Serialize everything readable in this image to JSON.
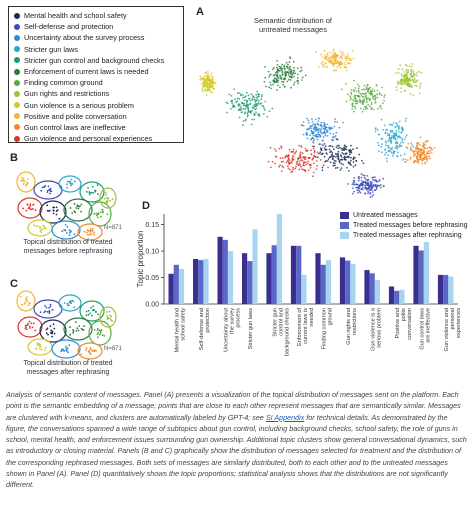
{
  "legend": [
    {
      "label": "Mental health and school safety",
      "color": "#1b2a52"
    },
    {
      "label": "Self-defense and protection",
      "color": "#3b4cb8"
    },
    {
      "label": "Uncertainty about the survey process",
      "color": "#2f8bd6"
    },
    {
      "label": "Stricter gun laws",
      "color": "#29a8c9"
    },
    {
      "label": "Stricter gun control and background checks",
      "color": "#1f9a6a"
    },
    {
      "label": "Enforcement of current laws is needed",
      "color": "#2b7a3f"
    },
    {
      "label": "Finding common ground",
      "color": "#5aa844"
    },
    {
      "label": "Gun rights and restrictions",
      "color": "#9cc43a"
    },
    {
      "label": "Gun violence is a serious problem",
      "color": "#cfcc2e"
    },
    {
      "label": "Positive and polite conversation",
      "color": "#f2b632"
    },
    {
      "label": "Gun control laws are ineffective",
      "color": "#ef8a2a"
    },
    {
      "label": "Gun violence and personal experiences",
      "color": "#d9342b"
    }
  ],
  "panel_a": {
    "letter": "A",
    "title": "Semantic distribution of\nuntreated messages"
  },
  "panel_b": {
    "letter": "B",
    "caption": "Topical distribution of treated\nmessages before rephrasing",
    "n": "N=871"
  },
  "panel_c": {
    "letter": "C",
    "caption": "Topical distribution of treated\nmessages after rephrasing",
    "n": "N=871"
  },
  "panel_d": {
    "letter": "D"
  },
  "chart_data": {
    "type": "bar",
    "ylabel": "Topic proportion",
    "ylim": [
      0,
      0.17
    ],
    "yticks": [
      "0.00",
      "0.05",
      "0.10",
      "0.15"
    ],
    "categories": [
      "Mental health and school safety",
      "Self-defense and protection",
      "Uncertainty about the survey process",
      "Stricter gun laws",
      "Stricter gun control and background checks",
      "Enforcement of current laws is needed",
      "Finding common ground",
      "Gun rights and restrictions",
      "Gun violence is a serious problem",
      "Positive and polite conversation",
      "Gun control laws are ineffective",
      "Gun violence and personal experiences"
    ],
    "series": [
      {
        "name": "Untreated messages",
        "color": "#3a2f8f",
        "values": [
          0.057,
          0.085,
          0.127,
          0.096,
          0.096,
          0.11,
          0.096,
          0.088,
          0.064,
          0.033,
          0.11,
          0.055
        ]
      },
      {
        "name": "Treated messages before rephrasing",
        "color": "#5a67c8",
        "values": [
          0.074,
          0.083,
          0.121,
          0.081,
          0.111,
          0.11,
          0.074,
          0.082,
          0.058,
          0.025,
          0.101,
          0.055
        ]
      },
      {
        "name": "Treated messages after rephrasing",
        "color": "#a8d4f0",
        "values": [
          0.066,
          0.085,
          0.1,
          0.141,
          0.17,
          0.055,
          0.083,
          0.076,
          0.045,
          0.027,
          0.117,
          0.052
        ]
      }
    ]
  },
  "caption": {
    "before_link": "Analysis of semantic content of messages. Panel (A) presents a visualization of the topical distribution of messages sent on the platform. Each point is the semantic embedding of a message; points that are close to each other represent messages that are semantically similar. Messages are clustered with k-means, and clusters are automatically labeled by GPT-4; see ",
    "link": "SI Appendix",
    "after_link": " for technical details. As demonstrated by the figure, the conversations spanned a wide range of subtopics about gun control, including background checks, school safety, the role of guns in school, mental health, and enforcement issues surrounding gun ownership. Additional topic clusters show general conversational dynamics, such as introductory or closing material. Panels (B and C) graphically show the distribution of messages selected for treatment and the distribution of the corresponding rephrased messages. Both sets of messages are similarly distributed, both to each other and to the untreated messages shown in Panel (A). Panel (D) quantitatively shows the topic proportions; statistical analysis shows that the distributions are not significantly different."
  }
}
